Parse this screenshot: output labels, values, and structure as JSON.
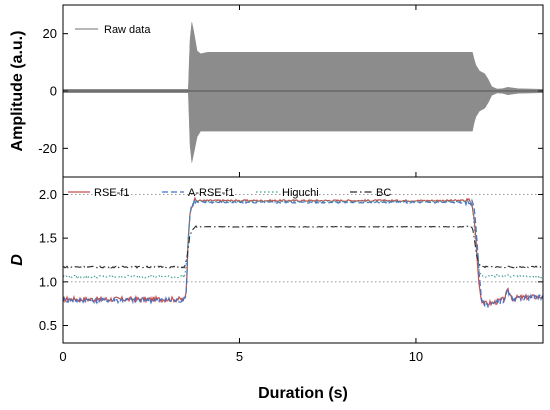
{
  "chart_data": [
    {
      "type": "line",
      "panel": "top",
      "xlim": [
        0,
        13.6
      ],
      "ylim": [
        -30,
        30
      ],
      "yticks": [
        -20,
        0,
        20
      ],
      "ylabel": "Amplitude (a.u.)",
      "grid": false,
      "legend_position": "top-left",
      "series": [
        {
          "name": "Raw data",
          "color": "#8c8c8c",
          "style": "solid",
          "envelope": {
            "x": [
              0,
              3.55,
              3.6,
              3.65,
              3.7,
              3.8,
              3.9,
              4.1,
              6.0,
              9.0,
              11.6,
              11.65,
              11.7,
              11.8,
              11.95,
              12.05,
              12.15,
              12.3,
              12.45,
              12.6,
              12.9,
              13.6
            ],
            "upper": [
              0.6,
              0.6,
              18,
              24,
              21,
              14,
              13,
              13.5,
              13.5,
              13.5,
              13.5,
              11,
              9,
              7,
              6,
              4,
              1.5,
              0.7,
              0.8,
              1.3,
              0.8,
              0.6
            ],
            "lower": [
              -0.6,
              -0.6,
              -19,
              -25,
              -22,
              -16,
              -14,
              -14,
              -14,
              -14,
              -14,
              -11,
              -9,
              -7,
              -6,
              -4,
              -1.5,
              -0.7,
              -0.8,
              -1.3,
              -0.8,
              -0.6
            ]
          }
        }
      ]
    },
    {
      "type": "line",
      "panel": "bottom",
      "xlim": [
        0,
        13.6
      ],
      "ylim": [
        0.3,
        2.2
      ],
      "xticks": [
        0,
        5,
        10
      ],
      "yticks": [
        0.5,
        1.0,
        1.5,
        2.0
      ],
      "ytick_labels": [
        "0.5",
        "1.0",
        "1.5",
        "2.0"
      ],
      "xlabel": "Duration (s)",
      "ylabel": "D",
      "grid": false,
      "reference_lines_y": [
        1.0,
        2.0
      ],
      "legend_position": "top",
      "series": [
        {
          "name": "RSE-f1",
          "color": "#c0504d",
          "style": "solid",
          "x": [
            0,
            3.45,
            3.5,
            3.52,
            3.55,
            3.62,
            3.7,
            11.55,
            11.62,
            11.7,
            11.75,
            11.8,
            11.85,
            11.95,
            12.2,
            12.5,
            12.6,
            12.75,
            12.9,
            13.6
          ],
          "y": [
            0.8,
            0.8,
            0.9,
            1.2,
            1.55,
            1.85,
            1.93,
            1.93,
            1.82,
            1.5,
            1.15,
            0.95,
            0.8,
            0.75,
            0.76,
            0.8,
            0.9,
            0.8,
            0.82,
            0.83
          ]
        },
        {
          "name": "A-RSE-f1",
          "color": "#4472c4",
          "style": "dashed",
          "x": [
            0,
            3.45,
            3.5,
            3.52,
            3.55,
            3.62,
            3.7,
            11.6,
            11.66,
            11.72,
            11.77,
            11.82,
            11.87,
            11.95,
            12.2,
            12.5,
            12.6,
            12.75,
            12.9,
            13.6
          ],
          "y": [
            0.79,
            0.79,
            0.9,
            1.2,
            1.55,
            1.85,
            1.91,
            1.91,
            1.84,
            1.55,
            1.2,
            0.95,
            0.8,
            0.74,
            0.75,
            0.79,
            0.9,
            0.79,
            0.81,
            0.82
          ]
        },
        {
          "name": "Higuchi",
          "color": "#3f9f8f",
          "style": "dotted",
          "x": [
            0,
            3.45,
            3.52,
            3.6,
            3.7,
            11.55,
            11.62,
            11.7,
            11.8,
            11.9,
            12.2,
            13.6
          ],
          "y": [
            1.06,
            1.06,
            1.3,
            1.8,
            1.92,
            1.92,
            1.8,
            1.4,
            1.12,
            1.06,
            1.07,
            1.06
          ]
        },
        {
          "name": "BC",
          "color": "#2b2b2b",
          "style": "dashdot",
          "x": [
            0,
            3.45,
            3.52,
            3.6,
            3.75,
            11.6,
            11.65,
            11.72,
            11.8,
            11.9,
            12.05,
            13.6
          ],
          "y": [
            1.17,
            1.17,
            1.3,
            1.55,
            1.63,
            1.63,
            1.5,
            1.3,
            1.2,
            1.17,
            1.17,
            1.17
          ]
        }
      ]
    }
  ]
}
